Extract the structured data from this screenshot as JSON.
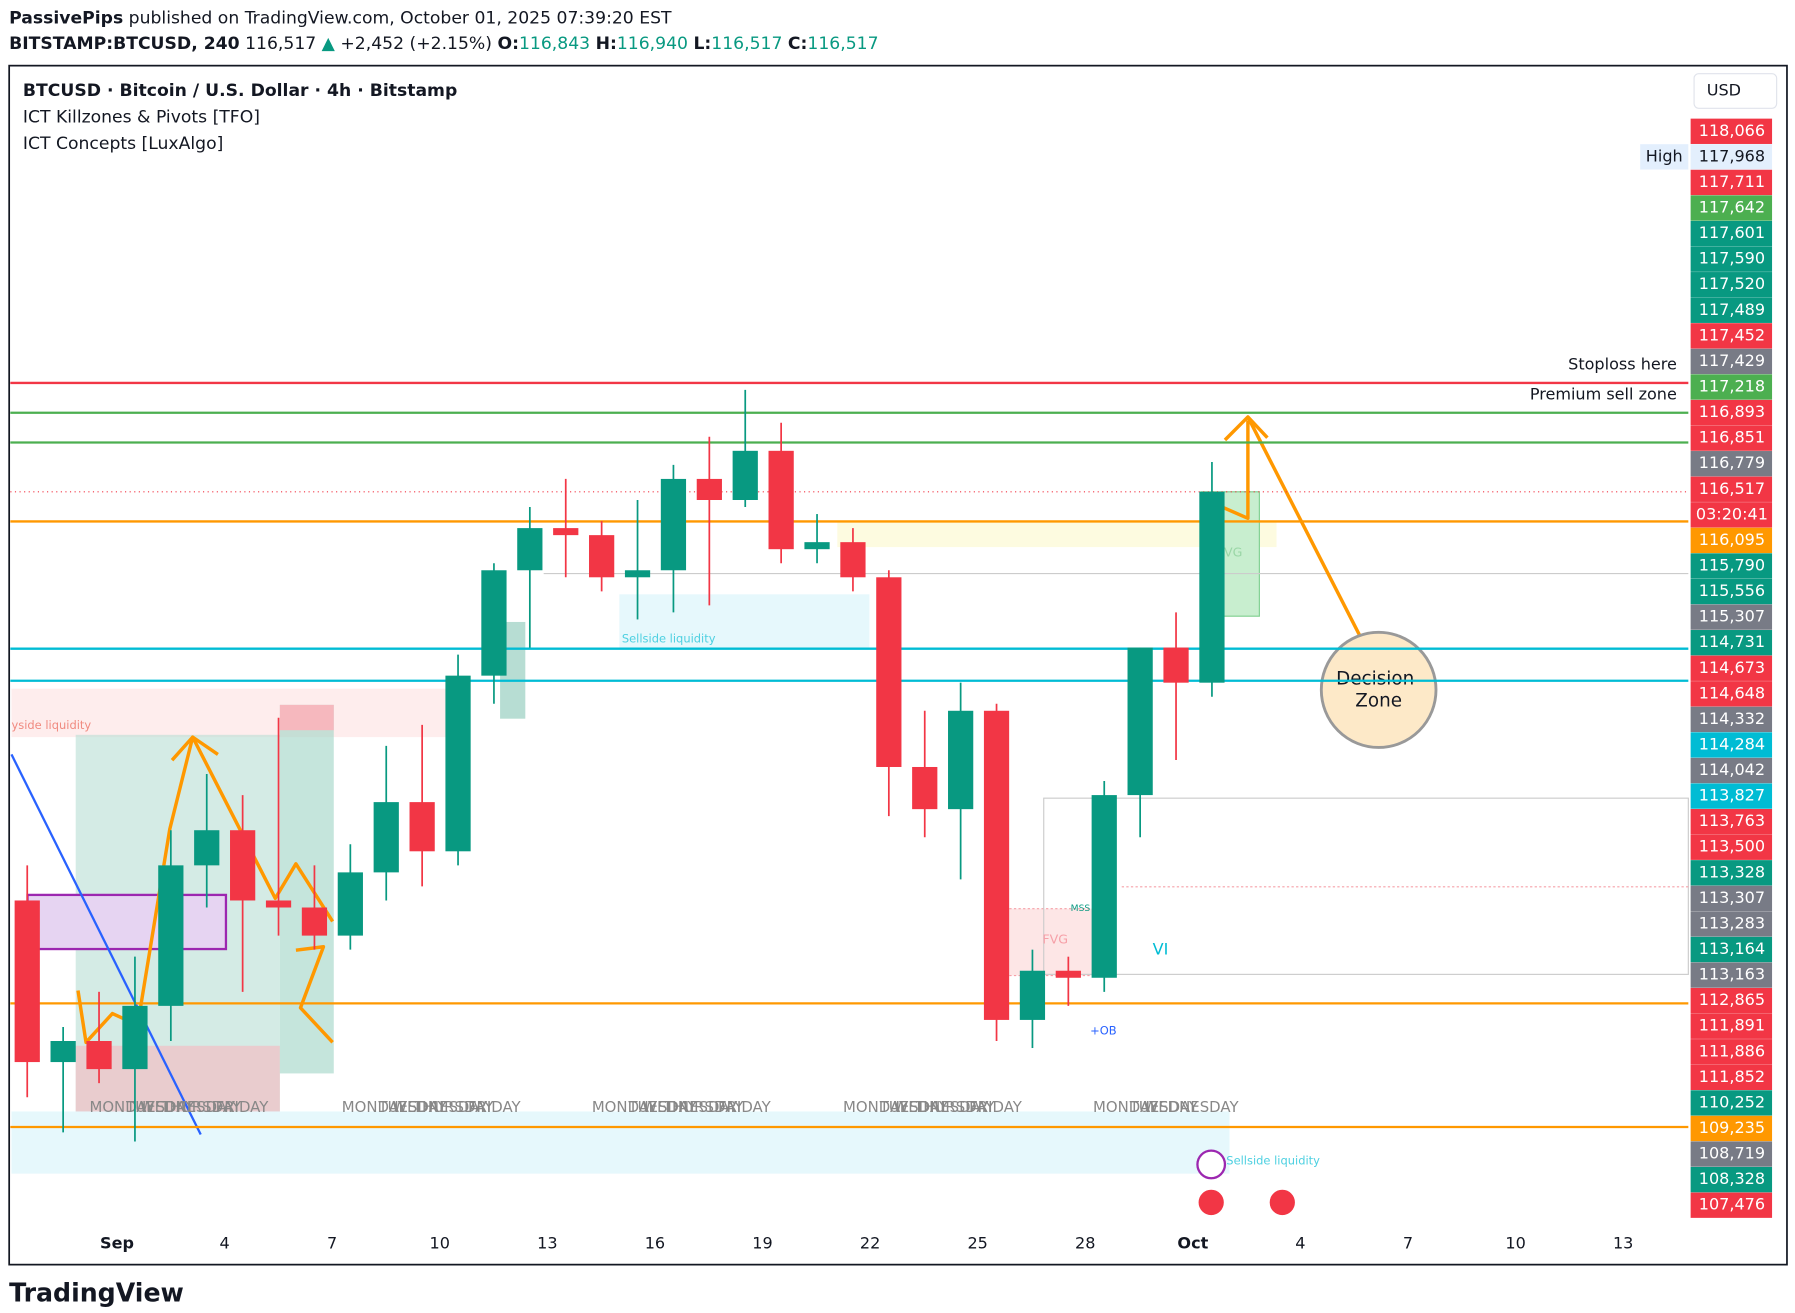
{
  "header": {
    "publisher": "PassivePips",
    "published": "published on TradingView.com, October 01, 2025 07:39:20 EST",
    "symbol": "BITSTAMP:BTCUSD, 240",
    "last": "116,517",
    "arrow": "▲",
    "change": "+2,452 (+2.15%)",
    "o_label": "O:",
    "o": "116,843",
    "h_label": "H:",
    "h": "116,940",
    "l_label": "L:",
    "l": "116,517",
    "c_label": "C:",
    "c": "116,517"
  },
  "legend": {
    "title": "BTCUSD · Bitcoin / U.S. Dollar · 4h · Bitstamp",
    "indicators": [
      "ICT Killzones & Pivots [TFO]",
      "ICT Concepts [LuxAlgo]"
    ]
  },
  "chart_data": {
    "type": "candlestick",
    "up_color": "#089981",
    "down_color": "#f23645",
    "ohlc": [
      [
        110700,
        111200,
        107900,
        108400
      ],
      [
        108400,
        108900,
        107400,
        108700
      ],
      [
        108700,
        109400,
        108100,
        108300
      ],
      [
        108300,
        109900,
        107270,
        109200
      ],
      [
        109200,
        111700,
        108700,
        111200
      ],
      [
        111200,
        112500,
        110600,
        111700
      ],
      [
        111700,
        112200,
        109400,
        110700
      ],
      [
        110700,
        113300,
        110200,
        110600
      ],
      [
        110600,
        111200,
        110000,
        110200
      ],
      [
        110200,
        111500,
        110000,
        111100
      ],
      [
        111100,
        112900,
        110700,
        112100
      ],
      [
        112100,
        113200,
        110900,
        111400
      ],
      [
        111400,
        114200,
        111200,
        113900
      ],
      [
        113900,
        115500,
        113500,
        115400
      ],
      [
        115400,
        116300,
        114300,
        116000
      ],
      [
        116000,
        116700,
        115300,
        115900
      ],
      [
        115900,
        116100,
        115100,
        115300
      ],
      [
        115300,
        116400,
        114700,
        115400
      ],
      [
        115400,
        116900,
        114800,
        116700
      ],
      [
        116700,
        117300,
        114900,
        116400
      ],
      [
        116400,
        117968,
        116300,
        117100
      ],
      [
        117100,
        117500,
        115500,
        115700
      ],
      [
        115700,
        116200,
        115500,
        115800
      ],
      [
        115800,
        116000,
        115100,
        115300
      ],
      [
        115300,
        115400,
        111900,
        112600
      ],
      [
        112600,
        113400,
        111600,
        112000
      ],
      [
        112000,
        113800,
        111000,
        113400
      ],
      [
        113400,
        113500,
        108700,
        109000
      ],
      [
        109000,
        110000,
        108600,
        109700
      ],
      [
        109700,
        109900,
        109200,
        109600
      ],
      [
        109600,
        112400,
        109400,
        112200
      ],
      [
        112200,
        114300,
        111600,
        114300
      ],
      [
        114300,
        114800,
        112700,
        113800
      ],
      [
        113800,
        116940,
        113600,
        116517
      ]
    ],
    "ylim": [
      106140,
      122451
    ],
    "x_labels": [
      "Sep",
      "4",
      "7",
      "10",
      "13",
      "16",
      "19",
      "22",
      "25",
      "28",
      "Oct",
      "4",
      "7",
      "10",
      "13"
    ],
    "levels": [
      {
        "value": 118066,
        "color": "#f23645"
      },
      {
        "value": 117642,
        "color": "#4caf50"
      },
      {
        "value": 117218,
        "color": "#4caf50"
      },
      {
        "value": 116095,
        "color": "#ff9800"
      },
      {
        "value": 114284,
        "color": "#00bcd4"
      },
      {
        "value": 113827,
        "color": "#00bcd4"
      },
      {
        "value": 109235,
        "color": "#ff9800"
      },
      {
        "value": 107476,
        "color": "#ff9800"
      }
    ],
    "current_price": 116517,
    "axis_currency": "USD",
    "high_label": "High",
    "countdown": "03:20:41",
    "axis_markers": [
      {
        "label": "118,066",
        "color": "#f23645"
      },
      {
        "label": "117,968",
        "color": "#e3effd"
      },
      {
        "label": "117,711",
        "color": "#f23645"
      },
      {
        "label": "117,642",
        "color": "#4caf50"
      },
      {
        "label": "117,601",
        "color": "#089981"
      },
      {
        "label": "117,590",
        "color": "#089981"
      },
      {
        "label": "117,520",
        "color": "#089981"
      },
      {
        "label": "117,489",
        "color": "#089981"
      },
      {
        "label": "117,452",
        "color": "#f23645"
      },
      {
        "label": "117,429",
        "color": "#787b86"
      },
      {
        "label": "117,218",
        "color": "#4caf50"
      },
      {
        "label": "116,893",
        "color": "#f23645"
      },
      {
        "label": "116,851",
        "color": "#f23645"
      },
      {
        "label": "116,779",
        "color": "#787b86"
      },
      {
        "label": "116,517",
        "color": "#f23645"
      },
      {
        "label": "116,095",
        "color": "#ff9800"
      },
      {
        "label": "115,790",
        "color": "#089981"
      },
      {
        "label": "115,556",
        "color": "#089981"
      },
      {
        "label": "115,307",
        "color": "#787b86"
      },
      {
        "label": "114,731",
        "color": "#089981"
      },
      {
        "label": "114,673",
        "color": "#f23645"
      },
      {
        "label": "114,648",
        "color": "#f23645"
      },
      {
        "label": "114,332",
        "color": "#787b86"
      },
      {
        "label": "114,284",
        "color": "#00bcd4"
      },
      {
        "label": "114,042",
        "color": "#787b86"
      },
      {
        "label": "113,827",
        "color": "#00bcd4"
      },
      {
        "label": "113,763",
        "color": "#f23645"
      },
      {
        "label": "113,500",
        "color": "#f23645"
      },
      {
        "label": "113,328",
        "color": "#089981"
      },
      {
        "label": "113,307",
        "color": "#787b86"
      },
      {
        "label": "113,283",
        "color": "#787b86"
      },
      {
        "label": "113,164",
        "color": "#089981"
      },
      {
        "label": "113,163",
        "color": "#787b86"
      },
      {
        "label": "112,865",
        "color": "#f23645"
      },
      {
        "label": "111,891",
        "color": "#f23645"
      },
      {
        "label": "111,886",
        "color": "#f23645"
      },
      {
        "label": "111,852",
        "color": "#f23645"
      },
      {
        "label": "110,252",
        "color": "#089981"
      },
      {
        "label": "109,235",
        "color": "#ff9800"
      },
      {
        "label": "108,719",
        "color": "#787b86"
      },
      {
        "label": "108,328",
        "color": "#089981"
      },
      {
        "label": "107,476",
        "color": "#f23645"
      }
    ]
  },
  "annotations": {
    "stoploss": "Stoploss here",
    "premium": "Premium sell zone",
    "decision": [
      "Decision",
      "Zone"
    ],
    "fvg": "FVG",
    "mss": "MSS",
    "ob": "+OB",
    "vi": "VI",
    "sellside": "Sellside liquidity",
    "buyside": "yside liquidity",
    "day_labels": [
      "MONDAY",
      "TUESDAY",
      "WEDNESDAY",
      "THURSDAY",
      "FRIDAY"
    ]
  },
  "footer": "TradingView"
}
